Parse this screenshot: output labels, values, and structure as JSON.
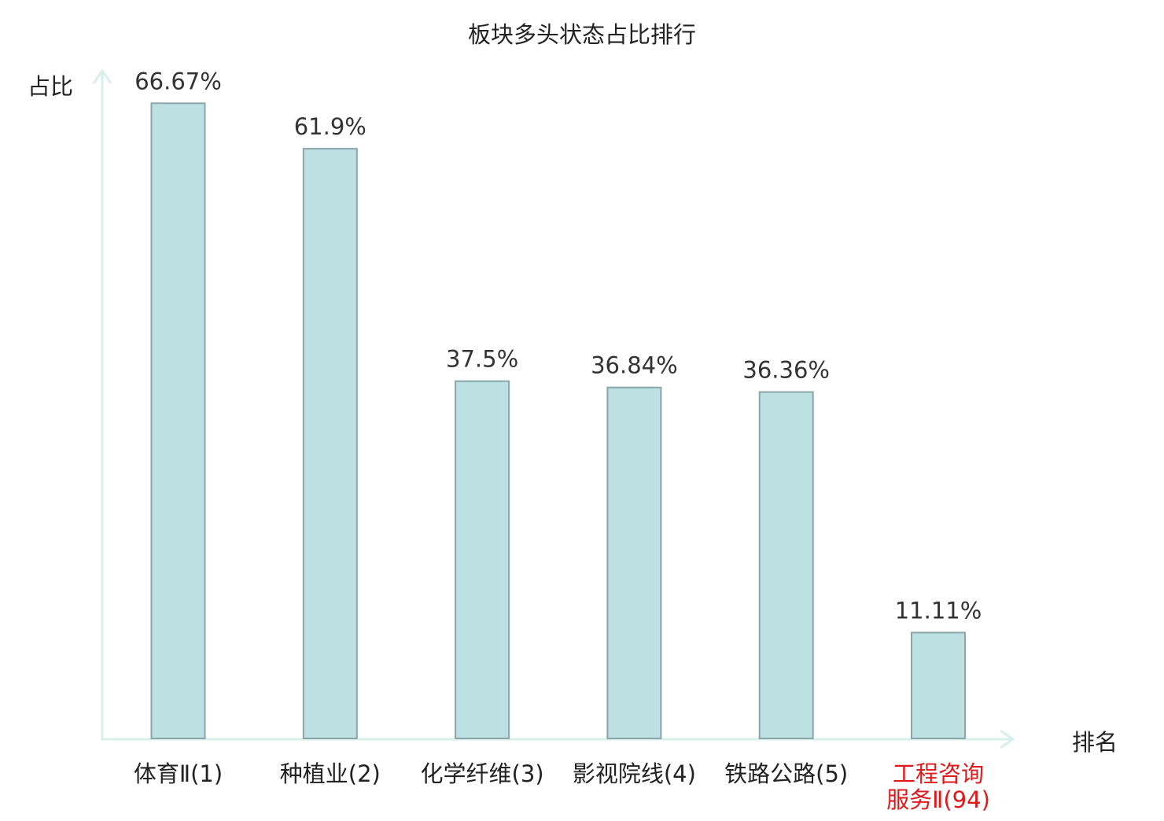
{
  "chart_data": {
    "type": "bar",
    "title": "板块多头状态占比排行",
    "ylabel": "占比",
    "xlabel": "排名",
    "ylim": [
      0,
      70
    ],
    "grid": false,
    "categories": [
      "体育Ⅱ(1)",
      "种植业(2)",
      "化学纤维(3)",
      "影视院线(4)",
      "铁路公路(5)",
      "工程咨询服务Ⅱ(94)"
    ],
    "category_lines": [
      [
        "体育Ⅱ(1)"
      ],
      [
        "种植业(2)"
      ],
      [
        "化学纤维(3)"
      ],
      [
        "影视院线(4)"
      ],
      [
        "铁路公路(5)"
      ],
      [
        "工程咨询",
        "服务Ⅱ(94)"
      ]
    ],
    "values": [
      66.67,
      61.9,
      37.5,
      36.84,
      36.36,
      11.11
    ],
    "value_labels": [
      "66.67%",
      "61.9%",
      "37.5%",
      "36.84%",
      "36.36%",
      "11.11%"
    ],
    "highlight_index": 5,
    "colors": {
      "bar_fill": "#bde0e3",
      "bar_stroke": "#8aa6aa",
      "axis": "#d8efeb",
      "text": "#222222",
      "value_text": "#333333",
      "highlight_text": "#e0191b"
    }
  }
}
